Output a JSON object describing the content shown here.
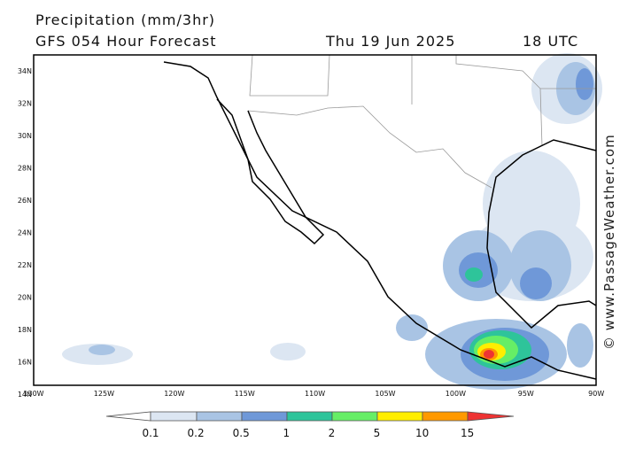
{
  "header": {
    "title": "Precipitation (mm/3hr)",
    "model": "GFS 054 Hour Forecast",
    "date": "Thu 19 Jun 2025",
    "time": "18 UTC"
  },
  "map": {
    "lat_labels": [
      "34N",
      "32N",
      "30N",
      "28N",
      "26N",
      "24N",
      "22N",
      "20N",
      "18N",
      "16N",
      "14N"
    ],
    "lon_labels": [
      "130W",
      "125W",
      "120W",
      "115W",
      "110W",
      "105W",
      "100W",
      "95W",
      "90W"
    ]
  },
  "legend": {
    "levels": [
      "0.1",
      "0.2",
      "0.5",
      "1",
      "2",
      "5",
      "10",
      "15"
    ]
  },
  "watermark": "© www.PassageWeather.com"
}
